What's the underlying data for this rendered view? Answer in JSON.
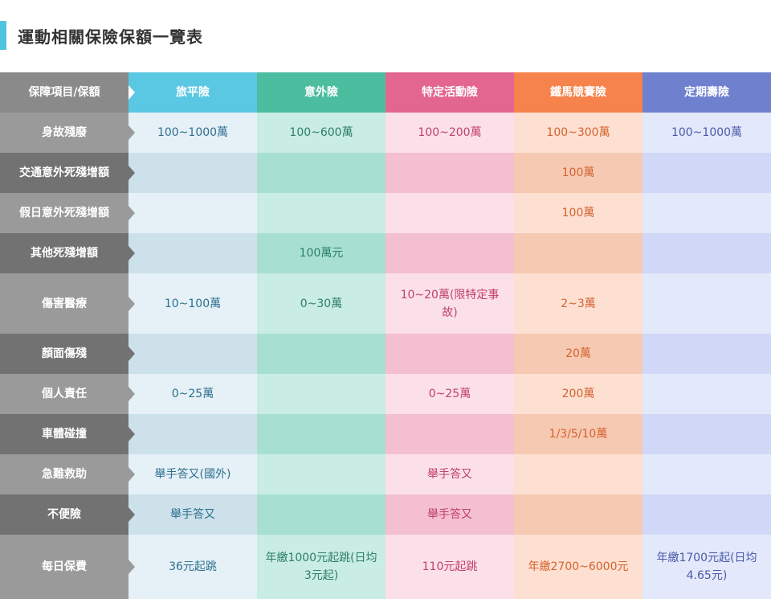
{
  "title": "運動相關保險保額一覽表",
  "colors": {
    "title_bar": "#4fc3e0",
    "travel": "#5ac8e2",
    "accident": "#4cbd9f",
    "activity": "#e2668f",
    "race": "#f6824c",
    "term": "#6f80cf"
  },
  "header": {
    "corner": "保障項目/保額",
    "columns": [
      "旅平險",
      "意外險",
      "特定活動險",
      "鐵馬競賽險",
      "定期壽險"
    ]
  },
  "rows": [
    {
      "label": "身故殘廢",
      "cells": [
        "100~1000萬",
        "100~600萬",
        "100~200萬",
        "100~300萬",
        "100~1000萬"
      ]
    },
    {
      "label": "交通意外死殘增額",
      "cells": [
        "",
        "",
        "",
        "100萬",
        ""
      ]
    },
    {
      "label": "假日意外死殘增額",
      "cells": [
        "",
        "",
        "",
        "100萬",
        ""
      ]
    },
    {
      "label": "其他死殘增額",
      "cells": [
        "",
        "100萬元",
        "",
        "",
        ""
      ]
    },
    {
      "label": "傷害醫療",
      "cells": [
        "10~100萬",
        "0~30萬",
        "10~20萬(限特定事故)",
        "2~3萬",
        ""
      ]
    },
    {
      "label": "顏面傷殘",
      "cells": [
        "",
        "",
        "",
        "20萬",
        ""
      ]
    },
    {
      "label": "個人責任",
      "cells": [
        "0~25萬",
        "",
        "0~25萬",
        "200萬",
        ""
      ]
    },
    {
      "label": "車體碰撞",
      "cells": [
        "",
        "",
        "",
        "1/3/5/10萬",
        ""
      ]
    },
    {
      "label": "急難救助",
      "cells": [
        "舉手答又(國外)",
        "",
        "舉手答又",
        "",
        ""
      ]
    },
    {
      "label": "不便險",
      "cells": [
        "舉手答又",
        "",
        "舉手答又",
        "",
        ""
      ]
    },
    {
      "label": "每日保費",
      "cells": [
        "36元起跳",
        "年繳1000元起跳(日均3元起)",
        "110元起跳",
        "年繳2700~6000元",
        "年繳1700元起(日均4.65元)"
      ]
    }
  ]
}
